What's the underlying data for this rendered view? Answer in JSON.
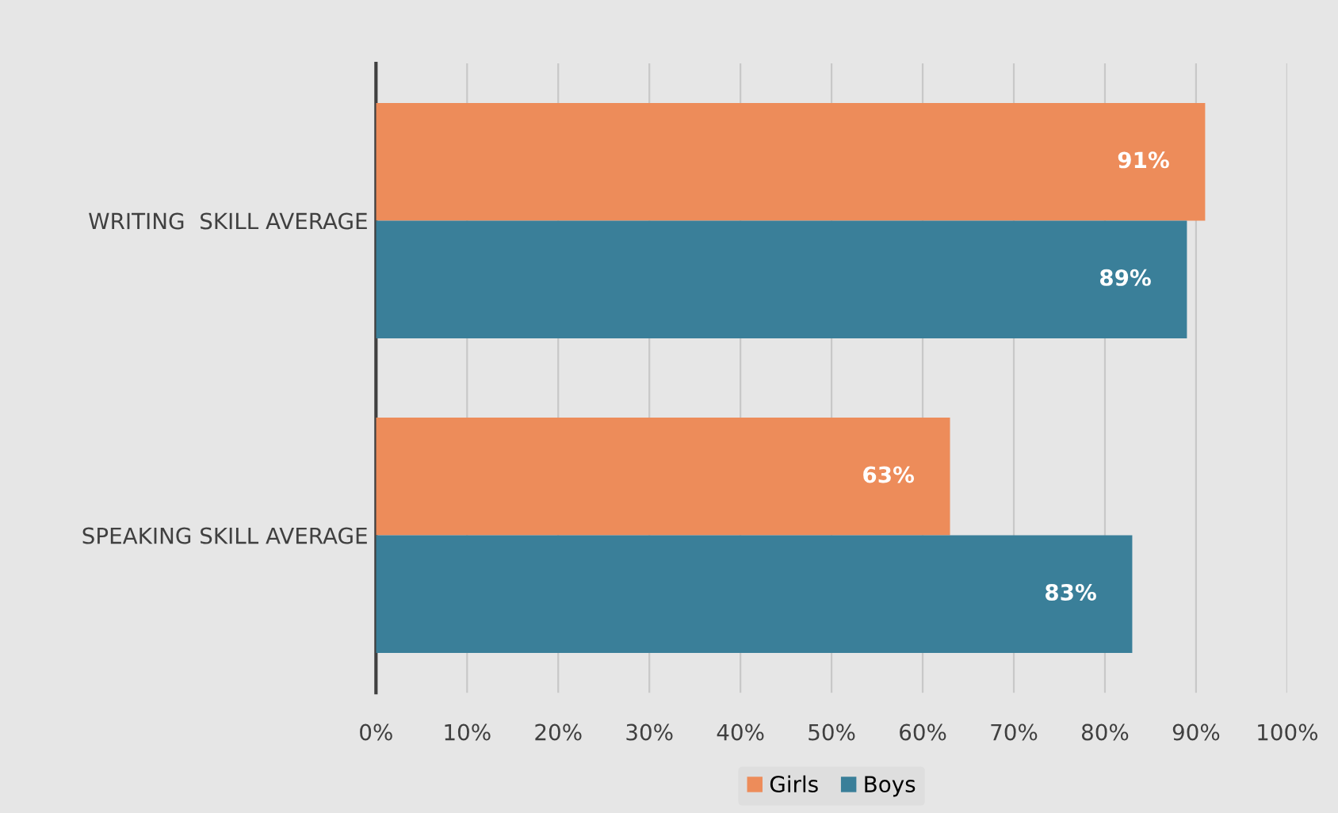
{
  "chart_data": {
    "type": "bar",
    "orientation": "horizontal",
    "categories": [
      "WRITING  SKILL AVERAGE",
      "SPEAKING SKILL AVERAGE"
    ],
    "series": [
      {
        "name": "Girls",
        "color": "#ed8c5a",
        "values": [
          91,
          63
        ],
        "value_labels": [
          "91%",
          "63%"
        ]
      },
      {
        "name": "Boys",
        "color": "#3a7f99",
        "values": [
          89,
          83
        ],
        "value_labels": [
          "89%",
          "83%"
        ]
      }
    ],
    "xlim": [
      0,
      100
    ],
    "xticks": [
      {
        "value": 0,
        "label": "0%"
      },
      {
        "value": 10,
        "label": "10%"
      },
      {
        "value": 20,
        "label": "20%"
      },
      {
        "value": 30,
        "label": "30%"
      },
      {
        "value": 40,
        "label": "40%"
      },
      {
        "value": 50,
        "label": "50%"
      },
      {
        "value": 60,
        "label": "60%"
      },
      {
        "value": 70,
        "label": "70%"
      },
      {
        "value": 80,
        "label": "80%"
      },
      {
        "value": 90,
        "label": "90%"
      },
      {
        "value": 100,
        "label": "100%"
      }
    ],
    "grid": "x",
    "legend": "bottom"
  }
}
